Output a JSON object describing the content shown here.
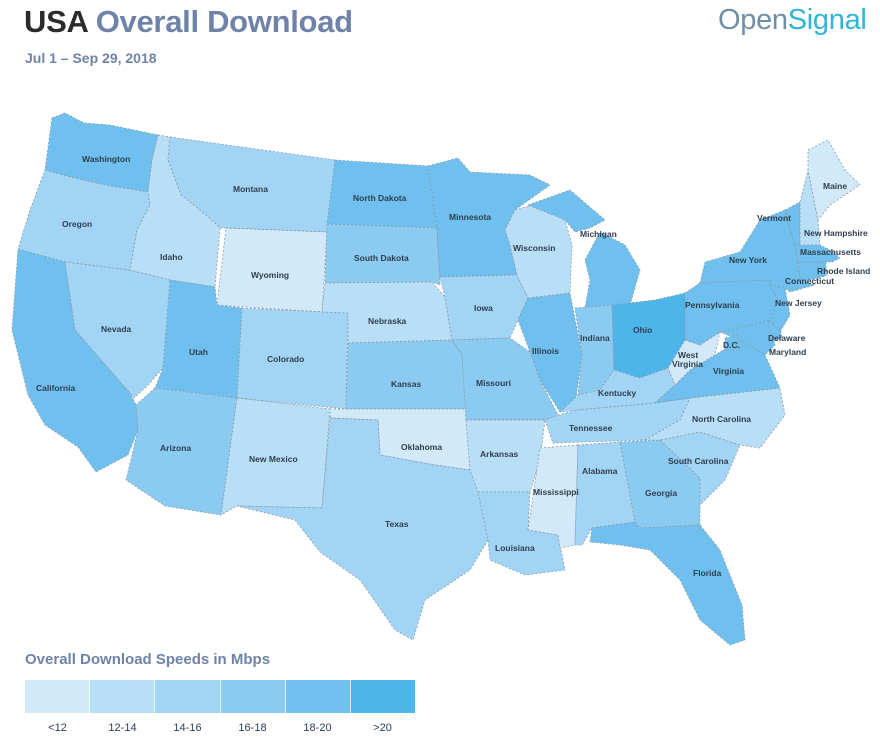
{
  "header": {
    "title_part1": "USA",
    "title_part2": "Overall Download",
    "date_range": "Jul 1 – Sep 29, 2018"
  },
  "brand": {
    "part1": "Open",
    "part2": "Signal"
  },
  "legend": {
    "title": "Overall Download Speeds in Mbps",
    "bins": [
      {
        "label": "<12",
        "color": "#d1e9f8"
      },
      {
        "label": "12-14",
        "color": "#b9dff7"
      },
      {
        "label": "14-16",
        "color": "#a2d5f5"
      },
      {
        "label": "16-18",
        "color": "#8bcbf1"
      },
      {
        "label": "18-20",
        "color": "#6fc0ee"
      },
      {
        "label": ">20",
        "color": "#4db5ea"
      }
    ]
  },
  "states": {
    "washington": {
      "name": "Washington",
      "bin": 4
    },
    "oregon": {
      "name": "Oregon",
      "bin": 2
    },
    "california": {
      "name": "California",
      "bin": 4
    },
    "idaho": {
      "name": "Idaho",
      "bin": 1
    },
    "nevada": {
      "name": "Nevada",
      "bin": 2
    },
    "montana": {
      "name": "Montana",
      "bin": 2
    },
    "wyoming": {
      "name": "Wyoming",
      "bin": 0
    },
    "utah": {
      "name": "Utah",
      "bin": 4
    },
    "arizona": {
      "name": "Arizona",
      "bin": 3
    },
    "colorado": {
      "name": "Colorado",
      "bin": 2
    },
    "new_mexico": {
      "name": "New Mexico",
      "bin": 1
    },
    "north_dakota": {
      "name": "North Dakota",
      "bin": 4
    },
    "south_dakota": {
      "name": "South Dakota",
      "bin": 3
    },
    "nebraska": {
      "name": "Nebraska",
      "bin": 1
    },
    "kansas": {
      "name": "Kansas",
      "bin": 3
    },
    "oklahoma": {
      "name": "Oklahoma",
      "bin": 0
    },
    "texas": {
      "name": "Texas",
      "bin": 2
    },
    "minnesota": {
      "name": "Minnesota",
      "bin": 4
    },
    "iowa": {
      "name": "Iowa",
      "bin": 2
    },
    "missouri": {
      "name": "Missouri",
      "bin": 3
    },
    "arkansas": {
      "name": "Arkansas",
      "bin": 1
    },
    "louisiana": {
      "name": "Louisiana",
      "bin": 2
    },
    "wisconsin": {
      "name": "Wisconsin",
      "bin": 1
    },
    "illinois": {
      "name": "Illinois",
      "bin": 4
    },
    "michigan": {
      "name": "Michigan",
      "bin": 4
    },
    "indiana": {
      "name": "Indiana",
      "bin": 3
    },
    "ohio": {
      "name": "Ohio",
      "bin": 5
    },
    "kentucky": {
      "name": "Kentucky",
      "bin": 2
    },
    "tennessee": {
      "name": "Tennessee",
      "bin": 2
    },
    "mississippi": {
      "name": "Mississippi",
      "bin": 0
    },
    "alabama": {
      "name": "Alabama",
      "bin": 2
    },
    "georgia": {
      "name": "Georgia",
      "bin": 3
    },
    "florida": {
      "name": "Florida",
      "bin": 4
    },
    "south_carolina": {
      "name": "South Carolina",
      "bin": 2
    },
    "north_carolina": {
      "name": "North Carolina",
      "bin": 1
    },
    "virginia": {
      "name": "Virginia",
      "bin": 4
    },
    "west_virginia": {
      "name": "West Virginia",
      "bin": 0
    },
    "pennsylvania": {
      "name": "Pennsylvania",
      "bin": 4
    },
    "new_york": {
      "name": "New York",
      "bin": 4
    },
    "new_jersey": {
      "name": "New Jersey",
      "bin": 4
    },
    "delaware": {
      "name": "Delaware",
      "bin": 4
    },
    "maryland": {
      "name": "Maryland",
      "bin": 4
    },
    "dc": {
      "name": "D.C.",
      "bin": 4
    },
    "vermont": {
      "name": "Vermont",
      "bin": 4
    },
    "new_hampshire": {
      "name": "New Hampshire",
      "bin": 1
    },
    "maine": {
      "name": "Maine",
      "bin": 0
    },
    "massachusetts": {
      "name": "Massachusetts",
      "bin": 4
    },
    "connecticut": {
      "name": "Connecticut",
      "bin": 4
    },
    "rhode_island": {
      "name": "Rhode Island",
      "bin": 4
    }
  }
}
